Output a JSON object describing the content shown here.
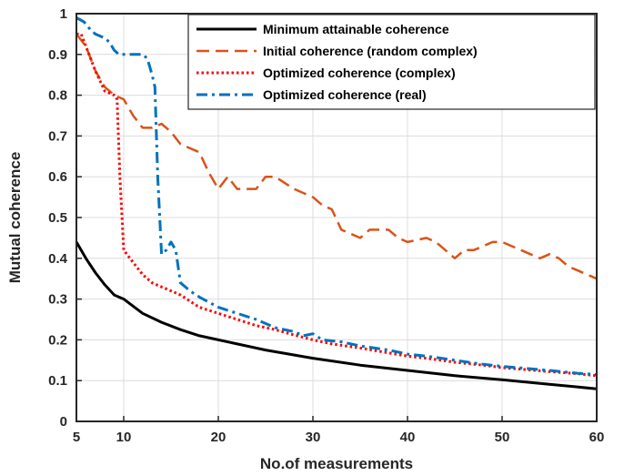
{
  "chart_data": {
    "type": "line",
    "title": "",
    "xlabel": "No.of measurements",
    "ylabel": "Mutual coherence",
    "xlim": [
      5,
      60
    ],
    "ylim": [
      0,
      1
    ],
    "xticks": [
      5,
      10,
      20,
      30,
      40,
      50,
      60
    ],
    "yticks": [
      0,
      0.1,
      0.2,
      0.3,
      0.4,
      0.5,
      0.6,
      0.7,
      0.8,
      0.9,
      1
    ],
    "xtick_labels": [
      "5",
      "10",
      "20",
      "30",
      "40",
      "50",
      "60"
    ],
    "ytick_labels": [
      "0",
      "0.1",
      "0.2",
      "0.3",
      "0.4",
      "0.5",
      "0.6",
      "0.7",
      "0.8",
      "0.9",
      "1"
    ],
    "grid": true,
    "legend_position": "top-right",
    "series": [
      {
        "name": "Minimum attainable coherence",
        "color": "#000000",
        "style": "solid",
        "points": [
          [
            5,
            0.44
          ],
          [
            6,
            0.4
          ],
          [
            7,
            0.365
          ],
          [
            8,
            0.335
          ],
          [
            9,
            0.31
          ],
          [
            10,
            0.3
          ],
          [
            12,
            0.265
          ],
          [
            14,
            0.243
          ],
          [
            16,
            0.225
          ],
          [
            18,
            0.21
          ],
          [
            20,
            0.2
          ],
          [
            25,
            0.175
          ],
          [
            30,
            0.155
          ],
          [
            35,
            0.138
          ],
          [
            40,
            0.125
          ],
          [
            45,
            0.112
          ],
          [
            50,
            0.102
          ],
          [
            55,
            0.091
          ],
          [
            60,
            0.08
          ]
        ]
      },
      {
        "name": "Initial coherence (random complex)",
        "color": "#D95319",
        "style": "dashed",
        "points": [
          [
            5,
            0.95
          ],
          [
            6,
            0.92
          ],
          [
            7,
            0.86
          ],
          [
            8,
            0.82
          ],
          [
            9,
            0.8
          ],
          [
            10,
            0.79
          ],
          [
            11,
            0.75
          ],
          [
            12,
            0.72
          ],
          [
            13,
            0.72
          ],
          [
            14,
            0.73
          ],
          [
            15,
            0.71
          ],
          [
            16,
            0.68
          ],
          [
            18,
            0.66
          ],
          [
            19,
            0.61
          ],
          [
            20,
            0.57
          ],
          [
            21,
            0.6
          ],
          [
            22,
            0.57
          ],
          [
            23,
            0.57
          ],
          [
            24,
            0.57
          ],
          [
            25,
            0.6
          ],
          [
            26,
            0.6
          ],
          [
            28,
            0.57
          ],
          [
            30,
            0.55
          ],
          [
            31,
            0.53
          ],
          [
            32,
            0.52
          ],
          [
            33,
            0.47
          ],
          [
            34,
            0.46
          ],
          [
            35,
            0.45
          ],
          [
            36,
            0.47
          ],
          [
            38,
            0.47
          ],
          [
            39,
            0.45
          ],
          [
            40,
            0.44
          ],
          [
            42,
            0.45
          ],
          [
            43,
            0.44
          ],
          [
            44,
            0.42
          ],
          [
            45,
            0.4
          ],
          [
            46,
            0.42
          ],
          [
            47,
            0.42
          ],
          [
            48,
            0.43
          ],
          [
            49,
            0.44
          ],
          [
            50,
            0.44
          ],
          [
            52,
            0.42
          ],
          [
            54,
            0.4
          ],
          [
            55,
            0.41
          ],
          [
            56,
            0.4
          ],
          [
            57,
            0.38
          ],
          [
            58,
            0.37
          ],
          [
            59,
            0.36
          ],
          [
            60,
            0.35
          ]
        ]
      },
      {
        "name": "Optimized coherence (complex)",
        "color": "#FF0000",
        "style": "dotted",
        "points": [
          [
            5,
            0.95
          ],
          [
            5.5,
            0.95
          ],
          [
            6,
            0.92
          ],
          [
            7,
            0.86
          ],
          [
            8,
            0.81
          ],
          [
            9,
            0.8
          ],
          [
            9.3,
            0.79
          ],
          [
            9.6,
            0.6
          ],
          [
            10,
            0.42
          ],
          [
            11,
            0.39
          ],
          [
            12,
            0.36
          ],
          [
            13,
            0.34
          ],
          [
            14,
            0.33
          ],
          [
            15,
            0.32
          ],
          [
            16,
            0.31
          ],
          [
            18,
            0.28
          ],
          [
            20,
            0.265
          ],
          [
            22,
            0.25
          ],
          [
            24,
            0.235
          ],
          [
            26,
            0.225
          ],
          [
            28,
            0.212
          ],
          [
            30,
            0.2
          ],
          [
            32,
            0.19
          ],
          [
            35,
            0.18
          ],
          [
            38,
            0.168
          ],
          [
            40,
            0.16
          ],
          [
            42,
            0.155
          ],
          [
            45,
            0.145
          ],
          [
            48,
            0.138
          ],
          [
            50,
            0.132
          ],
          [
            52,
            0.128
          ],
          [
            55,
            0.122
          ],
          [
            58,
            0.117
          ],
          [
            60,
            0.112
          ]
        ]
      },
      {
        "name": "Optimized coherence (real)",
        "color": "#0072BD",
        "style": "dashdot",
        "points": [
          [
            5,
            0.99
          ],
          [
            5.8,
            0.98
          ],
          [
            6.5,
            0.96
          ],
          [
            7,
            0.95
          ],
          [
            8,
            0.94
          ],
          [
            8.5,
            0.93
          ],
          [
            9,
            0.91
          ],
          [
            9.5,
            0.9
          ],
          [
            11,
            0.9
          ],
          [
            12,
            0.9
          ],
          [
            12.5,
            0.89
          ],
          [
            13,
            0.85
          ],
          [
            13.3,
            0.82
          ],
          [
            13.6,
            0.6
          ],
          [
            14,
            0.41
          ],
          [
            14.5,
            0.42
          ],
          [
            15,
            0.44
          ],
          [
            15.5,
            0.42
          ],
          [
            16,
            0.34
          ],
          [
            17,
            0.32
          ],
          [
            18,
            0.305
          ],
          [
            20,
            0.28
          ],
          [
            22,
            0.265
          ],
          [
            24,
            0.25
          ],
          [
            26,
            0.23
          ],
          [
            28,
            0.22
          ],
          [
            29,
            0.21
          ],
          [
            30,
            0.215
          ],
          [
            31,
            0.2
          ],
          [
            33,
            0.195
          ],
          [
            35,
            0.185
          ],
          [
            38,
            0.175
          ],
          [
            40,
            0.165
          ],
          [
            42,
            0.16
          ],
          [
            45,
            0.15
          ],
          [
            48,
            0.14
          ],
          [
            50,
            0.135
          ],
          [
            55,
            0.125
          ],
          [
            58,
            0.118
          ],
          [
            60,
            0.115
          ]
        ]
      }
    ]
  }
}
